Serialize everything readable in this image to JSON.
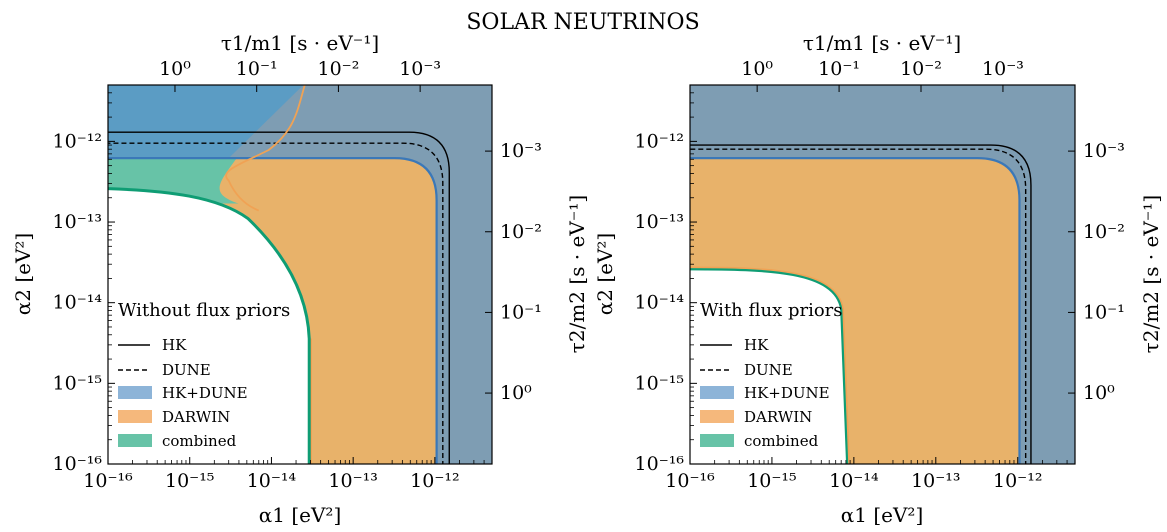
{
  "figure_title": "SOLAR NEUTRINOS",
  "colors": {
    "excluded_background": "#7e9db3",
    "hk_dune": "#5b9cc4",
    "hk_dune_line": "#3b78b8",
    "darwin": "#e8b26a",
    "darwin_line": "#f0a254",
    "combined": "#67c3a7",
    "combined_line": "#0f9d74",
    "allowed": "#ffffff"
  },
  "chart_data": [
    {
      "type": "area",
      "panel": "left",
      "legend_title": "Without flux priors",
      "xlabel": "α1 [eV²]",
      "ylabel": "α2 [eV²]",
      "top_xlabel": "τ1/m1 [s · eV⁻¹]",
      "right_ylabel": "τ2/m2 [s · eV⁻¹]",
      "x_scale": "log",
      "y_scale": "log",
      "xlim": [
        1e-16,
        5e-12
      ],
      "ylim": [
        1e-16,
        5e-12
      ],
      "x_ticks": [
        1e-16,
        1e-15,
        1e-14,
        1e-13,
        1e-12
      ],
      "x_tick_labels": [
        "10⁻¹⁶",
        "10⁻¹⁵",
        "10⁻¹⁴",
        "10⁻¹³",
        "10⁻¹²"
      ],
      "y_ticks": [
        1e-16,
        1e-15,
        1e-14,
        1e-13,
        1e-12
      ],
      "y_tick_labels": [
        "10⁻¹⁶",
        "10⁻¹⁵",
        "10⁻¹⁴",
        "10⁻¹³",
        "10⁻¹²"
      ],
      "top_ticks_alpha": [
        6.6e-16,
        6.6e-15,
        6.6e-14,
        6.6e-13
      ],
      "top_tick_labels": [
        "10⁰",
        "10⁻¹",
        "10⁻²",
        "10⁻³"
      ],
      "right_ticks_alpha": [
        6.6e-16,
        6.6e-15,
        6.6e-14,
        6.6e-13
      ],
      "right_tick_labels": [
        "10⁰",
        "10⁻¹",
        "10⁻²",
        "10⁻³"
      ],
      "legend_placement": "lower-left",
      "legend": [
        {
          "label": "HK",
          "style": "solid-line"
        },
        {
          "label": "DUNE",
          "style": "dashed-line"
        },
        {
          "label": "HK+DUNE",
          "style": "patch",
          "color": "#5b9cc4"
        },
        {
          "label": "DARWIN",
          "style": "patch",
          "color": "#f0a254"
        },
        {
          "label": "combined",
          "style": "patch",
          "color": "#67c3a7"
        }
      ],
      "series": [
        {
          "name": "HK",
          "kind": "boundary",
          "x_limit": 1.5e-12,
          "y_limit": 1.3e-12
        },
        {
          "name": "DUNE",
          "kind": "boundary",
          "x_limit": 1.25e-12,
          "y_limit": 9.5e-13
        },
        {
          "name": "HK+DUNE",
          "kind": "boundary",
          "x_limit": 1.05e-12,
          "y_limit": 6.2e-13
        },
        {
          "name": "DARWIN",
          "kind": "boundary",
          "x_limit": 2.9e-14,
          "upper_strip_max_x": [
            3e-15,
            2.6e-14
          ]
        },
        {
          "name": "combined",
          "kind": "boundary",
          "x_limit": 2.9e-14,
          "y_limit": 2.6e-13
        }
      ]
    },
    {
      "type": "area",
      "panel": "right",
      "legend_title": "With flux priors",
      "xlabel": "α1 [eV²]",
      "ylabel": "α2 [eV²]",
      "top_xlabel": "τ1/m1 [s · eV⁻¹]",
      "right_ylabel": "τ2/m2 [s · eV⁻¹]",
      "x_scale": "log",
      "y_scale": "log",
      "xlim": [
        1e-16,
        5e-12
      ],
      "ylim": [
        1e-16,
        5e-12
      ],
      "x_ticks": [
        1e-16,
        1e-15,
        1e-14,
        1e-13,
        1e-12
      ],
      "x_tick_labels": [
        "10⁻¹⁶",
        "10⁻¹⁵",
        "10⁻¹⁴",
        "10⁻¹³",
        "10⁻¹²"
      ],
      "y_ticks": [
        1e-16,
        1e-15,
        1e-14,
        1e-13,
        1e-12
      ],
      "y_tick_labels": [
        "10⁻¹⁶",
        "10⁻¹⁵",
        "10⁻¹⁴",
        "10⁻¹³",
        "10⁻¹²"
      ],
      "top_ticks_alpha": [
        6.6e-16,
        6.6e-15,
        6.6e-14,
        6.6e-13
      ],
      "top_tick_labels": [
        "10⁰",
        "10⁻¹",
        "10⁻²",
        "10⁻³"
      ],
      "right_ticks_alpha": [
        6.6e-16,
        6.6e-15,
        6.6e-14,
        6.6e-13
      ],
      "right_tick_labels": [
        "10⁰",
        "10⁻¹",
        "10⁻²",
        "10⁻³"
      ],
      "legend_placement": "lower-left",
      "legend": [
        {
          "label": "HK",
          "style": "solid-line"
        },
        {
          "label": "DUNE",
          "style": "dashed-line"
        },
        {
          "label": "HK+DUNE",
          "style": "patch",
          "color": "#5b9cc4"
        },
        {
          "label": "DARWIN",
          "style": "patch",
          "color": "#f0a254"
        },
        {
          "label": "combined",
          "style": "patch",
          "color": "#67c3a7"
        }
      ],
      "series": [
        {
          "name": "HK",
          "kind": "boundary",
          "x_limit": 1.45e-12,
          "y_limit": 9e-13
        },
        {
          "name": "DUNE",
          "kind": "boundary",
          "x_limit": 1.25e-12,
          "y_limit": 8e-13
        },
        {
          "name": "HK+DUNE",
          "kind": "boundary",
          "x_limit": 1.05e-12,
          "y_limit": 6.2e-13
        },
        {
          "name": "DARWIN",
          "kind": "boundary",
          "x_limit": 8.5e-15,
          "y_limit": 2.7e-14
        },
        {
          "name": "combined",
          "kind": "boundary",
          "x_limit": 8.3e-15,
          "y_limit": 2.6e-14
        }
      ]
    }
  ]
}
